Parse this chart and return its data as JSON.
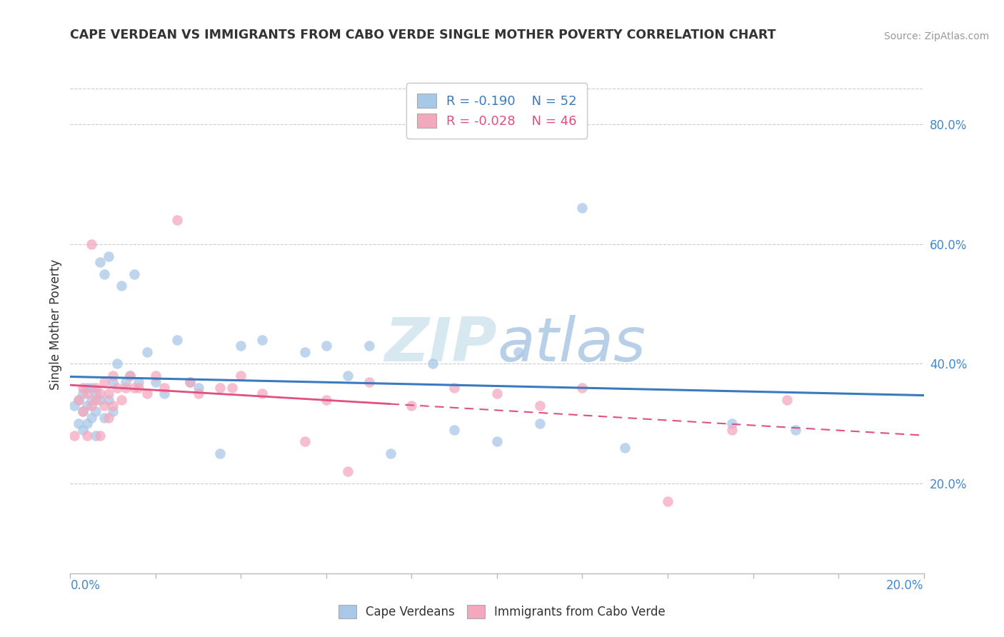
{
  "title": "CAPE VERDEAN VS IMMIGRANTS FROM CABO VERDE SINGLE MOTHER POVERTY CORRELATION CHART",
  "source": "Source: ZipAtlas.com",
  "ylabel": "Single Mother Poverty",
  "legend_label1": "Cape Verdeans",
  "legend_label2": "Immigrants from Cabo Verde",
  "r1": -0.19,
  "n1": 52,
  "r2": -0.028,
  "n2": 46,
  "color1": "#a8c8e8",
  "color2": "#f4a8be",
  "line_color1": "#3a7abf",
  "line_color2": "#e05080",
  "watermark_zip": "ZIP",
  "watermark_atlas": "atlas",
  "xlim": [
    0.0,
    0.2
  ],
  "ylim": [
    0.05,
    0.88
  ],
  "yticks": [
    0.2,
    0.4,
    0.6,
    0.8
  ],
  "ytick_labels": [
    "20.0%",
    "40.0%",
    "60.0%",
    "80.0%"
  ],
  "scatter1_x": [
    0.001,
    0.002,
    0.002,
    0.003,
    0.003,
    0.003,
    0.004,
    0.004,
    0.004,
    0.005,
    0.005,
    0.005,
    0.006,
    0.006,
    0.006,
    0.007,
    0.007,
    0.008,
    0.008,
    0.009,
    0.009,
    0.01,
    0.01,
    0.011,
    0.012,
    0.013,
    0.014,
    0.015,
    0.016,
    0.018,
    0.02,
    0.022,
    0.025,
    0.028,
    0.03,
    0.035,
    0.04,
    0.045,
    0.055,
    0.06,
    0.065,
    0.07,
    0.075,
    0.085,
    0.09,
    0.1,
    0.105,
    0.11,
    0.12,
    0.13,
    0.155,
    0.17
  ],
  "scatter1_y": [
    0.33,
    0.34,
    0.3,
    0.32,
    0.35,
    0.29,
    0.33,
    0.36,
    0.3,
    0.34,
    0.31,
    0.36,
    0.32,
    0.35,
    0.28,
    0.57,
    0.34,
    0.55,
    0.31,
    0.58,
    0.34,
    0.37,
    0.32,
    0.4,
    0.53,
    0.37,
    0.38,
    0.55,
    0.37,
    0.42,
    0.37,
    0.35,
    0.44,
    0.37,
    0.36,
    0.25,
    0.43,
    0.44,
    0.42,
    0.43,
    0.38,
    0.43,
    0.25,
    0.4,
    0.29,
    0.27,
    0.42,
    0.3,
    0.66,
    0.26,
    0.3,
    0.29
  ],
  "scatter2_x": [
    0.001,
    0.002,
    0.003,
    0.003,
    0.004,
    0.004,
    0.005,
    0.005,
    0.006,
    0.006,
    0.007,
    0.007,
    0.008,
    0.008,
    0.009,
    0.009,
    0.01,
    0.01,
    0.011,
    0.012,
    0.013,
    0.014,
    0.015,
    0.016,
    0.018,
    0.02,
    0.022,
    0.025,
    0.028,
    0.03,
    0.035,
    0.038,
    0.04,
    0.045,
    0.055,
    0.06,
    0.065,
    0.07,
    0.08,
    0.09,
    0.1,
    0.11,
    0.12,
    0.14,
    0.155,
    0.168
  ],
  "scatter2_y": [
    0.28,
    0.34,
    0.36,
    0.32,
    0.35,
    0.28,
    0.6,
    0.33,
    0.34,
    0.36,
    0.35,
    0.28,
    0.33,
    0.37,
    0.35,
    0.31,
    0.33,
    0.38,
    0.36,
    0.34,
    0.36,
    0.38,
    0.36,
    0.36,
    0.35,
    0.38,
    0.36,
    0.64,
    0.37,
    0.35,
    0.36,
    0.36,
    0.38,
    0.35,
    0.27,
    0.34,
    0.22,
    0.37,
    0.33,
    0.36,
    0.35,
    0.33,
    0.36,
    0.17,
    0.29,
    0.34
  ]
}
